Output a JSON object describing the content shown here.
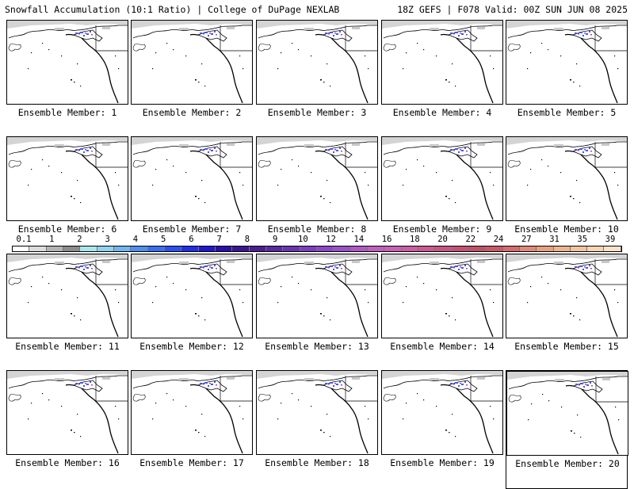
{
  "header": {
    "left": "Snowfall Accumulation (10:1 Ratio) | College of DuPage NEXLAB",
    "right": "18Z GEFS | F078 Valid: 00Z SUN JUN 08 2025"
  },
  "panels": [
    {
      "label": "Ensemble Member: 1"
    },
    {
      "label": "Ensemble Member: 2"
    },
    {
      "label": "Ensemble Member: 3"
    },
    {
      "label": "Ensemble Member: 4"
    },
    {
      "label": "Ensemble Member: 5"
    },
    {
      "label": "Ensemble Member: 6"
    },
    {
      "label": "Ensemble Member: 7"
    },
    {
      "label": "Ensemble Member: 8"
    },
    {
      "label": "Ensemble Member: 9"
    },
    {
      "label": "Ensemble Member: 10"
    },
    {
      "label": "Ensemble Member: 11"
    },
    {
      "label": "Ensemble Member: 12"
    },
    {
      "label": "Ensemble Member: 13"
    },
    {
      "label": "Ensemble Member: 14"
    },
    {
      "label": "Ensemble Member: 15"
    },
    {
      "label": "Ensemble Member: 16"
    },
    {
      "label": "Ensemble Member: 17"
    },
    {
      "label": "Ensemble Member: 18"
    },
    {
      "label": "Ensemble Member: 19"
    },
    {
      "label": "Ensemble Member: 20",
      "selected": true
    }
  ],
  "colorbar": {
    "labels": [
      "0.1",
      "1",
      "2",
      "3",
      "4",
      "5",
      "6",
      "7",
      "8",
      "9",
      "10",
      "12",
      "14",
      "16",
      "18",
      "20",
      "22",
      "24",
      "27",
      "31",
      "35",
      "39"
    ],
    "colors": [
      "#ffffff",
      "#dcdcdc",
      "#b4b4b4",
      "#8c8c8c",
      "#a8e6ef",
      "#8fd3f0",
      "#6fb6f2",
      "#4f8ff0",
      "#3a6ef0",
      "#2a4ff0",
      "#1f2fe6",
      "#1f18d0",
      "#2a10a8",
      "#3a1690",
      "#4a2090",
      "#5a2aa0",
      "#6a34b0",
      "#7a3ec0",
      "#8a48c8",
      "#9a50c8",
      "#b058c8",
      "#c060c0",
      "#c860b4",
      "#cc5ca4",
      "#cc5894",
      "#c85484",
      "#c45074",
      "#c05068",
      "#c85a68",
      "#d46c70",
      "#e08878",
      "#e8a080",
      "#eeb490",
      "#f2c4a0",
      "#f6d4b4",
      "#f9e2c8"
    ]
  }
}
